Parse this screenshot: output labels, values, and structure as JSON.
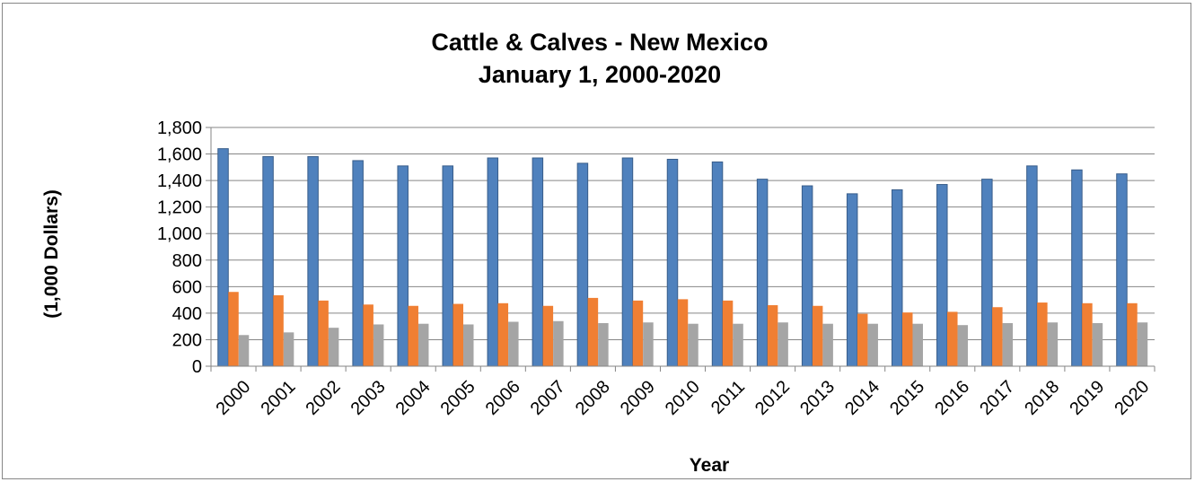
{
  "chart_data": {
    "type": "bar",
    "title_line1": "Cattle & Calves - New Mexico",
    "title_line2": "January 1, 2000-2020",
    "xlabel": "Year",
    "ylabel": "(1,000 Dollars)",
    "ylim": [
      0,
      1800
    ],
    "yticks": [
      0,
      200,
      400,
      600,
      800,
      1000,
      1200,
      1400,
      1600,
      1800
    ],
    "ytick_labels": [
      "0",
      "200",
      "400",
      "600",
      "800",
      "1,000",
      "1,200",
      "1,400",
      "1,600",
      "1,800"
    ],
    "grid": true,
    "legend": "none",
    "categories": [
      "2000",
      "2001",
      "2002",
      "2003",
      "2004",
      "2005",
      "2006",
      "2007",
      "2008",
      "2009",
      "2010",
      "2011",
      "2012",
      "2013",
      "2014",
      "2015",
      "2016",
      "2017",
      "2018",
      "2019",
      "2020"
    ],
    "series": [
      {
        "color": "#4f81bd",
        "values": [
          1640,
          1580,
          1580,
          1550,
          1510,
          1510,
          1570,
          1570,
          1530,
          1570,
          1560,
          1540,
          1410,
          1360,
          1300,
          1330,
          1370,
          1410,
          1510,
          1480,
          1450
        ]
      },
      {
        "color": "#f07f33",
        "values": [
          560,
          535,
          495,
          465,
          455,
          470,
          475,
          455,
          515,
          495,
          505,
          495,
          460,
          455,
          395,
          405,
          410,
          445,
          480,
          475,
          475
        ]
      },
      {
        "color": "#a5a5a5",
        "values": [
          235,
          255,
          290,
          315,
          320,
          315,
          335,
          340,
          325,
          330,
          320,
          320,
          330,
          320,
          320,
          320,
          310,
          325,
          330,
          325,
          330
        ]
      }
    ]
  }
}
